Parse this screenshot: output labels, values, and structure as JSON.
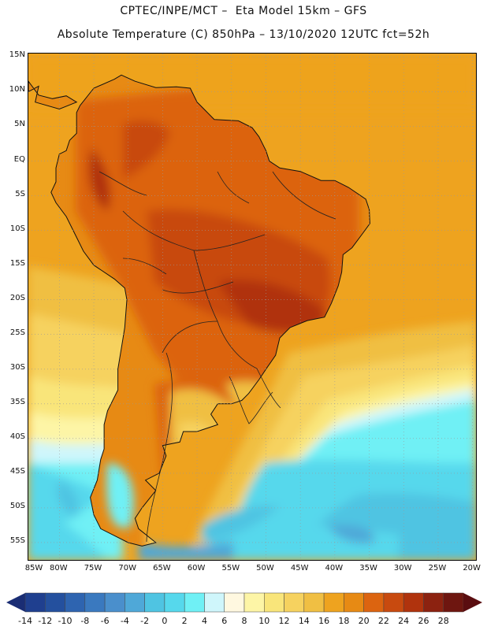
{
  "title_line1": "CPTEC/INPE/MCT –  Eta Model 15km – GFS",
  "title_line2": "Absolute Temperature (C) 850hPa – 13/10/2020 12UTC fct=52h",
  "map": {
    "lat_labels": [
      "15N",
      "10N",
      "5N",
      "EQ",
      "5S",
      "10S",
      "15S",
      "20S",
      "25S",
      "30S",
      "35S",
      "40S",
      "45S",
      "50S",
      "55S"
    ],
    "lon_labels": [
      "85W",
      "80W",
      "75W",
      "70W",
      "65W",
      "60W",
      "55W",
      "50W",
      "45W",
      "40W",
      "35W",
      "30W",
      "25W",
      "20W"
    ],
    "lat_range": [
      -57.5,
      15.5
    ],
    "lon_range": [
      -84.5,
      -19.5
    ],
    "grid": "dotted"
  },
  "colorbar": {
    "labels": [
      "-14",
      "-12",
      "-10",
      "-8",
      "-6",
      "-4",
      "-2",
      "0",
      "2",
      "4",
      "6",
      "8",
      "10",
      "12",
      "14",
      "16",
      "18",
      "20",
      "22",
      "24",
      "26",
      "28"
    ],
    "colors": [
      "#1f3f8f",
      "#24509e",
      "#2e64b0",
      "#3a79bf",
      "#4a8fcc",
      "#4fa8d8",
      "#4fc4e2",
      "#56d8ec",
      "#6ff0f5",
      "#cff6fb",
      "#fff8e0",
      "#fdf5a6",
      "#f9e57a",
      "#f6d25f",
      "#f0bf43",
      "#eea31f",
      "#e78a14",
      "#dc6410",
      "#c84a0f",
      "#b0330d",
      "#8c2210",
      "#6e1610"
    ],
    "under_color": "#1a2d74",
    "over_color": "#5a0d10"
  },
  "icons": {
    "under_arrow": "triangle-left-icon",
    "over_arrow": "triangle-right-icon"
  }
}
